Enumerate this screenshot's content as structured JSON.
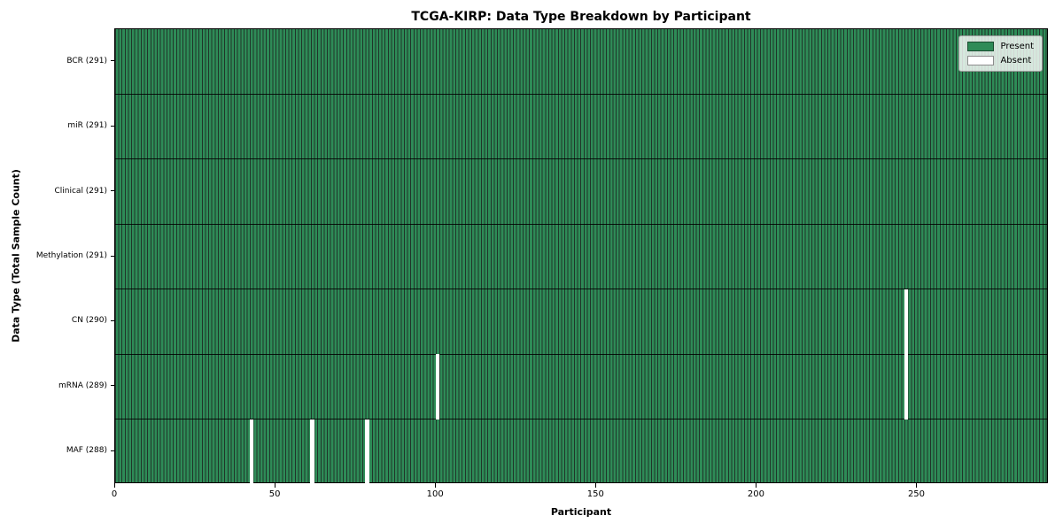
{
  "chart_data": {
    "type": "heatmap",
    "title": "TCGA-KIRP: Data Type Breakdown by Participant",
    "xlabel": "Participant",
    "ylabel": "Data Type (Total Sample Count)",
    "n_participants": 291,
    "x_ticks": [
      0,
      50,
      100,
      150,
      200,
      250
    ],
    "rows": [
      {
        "label": "BCR (291)",
        "present_count": 291,
        "absent_participants": []
      },
      {
        "label": "miR (291)",
        "present_count": 291,
        "absent_participants": []
      },
      {
        "label": "Clinical (291)",
        "present_count": 291,
        "absent_participants": []
      },
      {
        "label": "Methylation (291)",
        "present_count": 291,
        "absent_participants": []
      },
      {
        "label": "CN (290)",
        "present_count": 290,
        "absent_participants": [
          246
        ]
      },
      {
        "label": "mRNA (289)",
        "present_count": 289,
        "absent_participants": [
          100,
          246
        ]
      },
      {
        "label": "MAF (288)",
        "present_count": 288,
        "absent_participants": [
          42,
          61,
          78
        ]
      }
    ],
    "legend": [
      {
        "label": "Present",
        "color": "#2e8b57"
      },
      {
        "label": "Absent",
        "color": "#ffffff"
      }
    ],
    "colors": {
      "present": "#2e8b57",
      "absent": "#ffffff",
      "bar_edge": "#20352a",
      "background": "#ffffff"
    },
    "legend_position": "upper right",
    "grid": false
  }
}
